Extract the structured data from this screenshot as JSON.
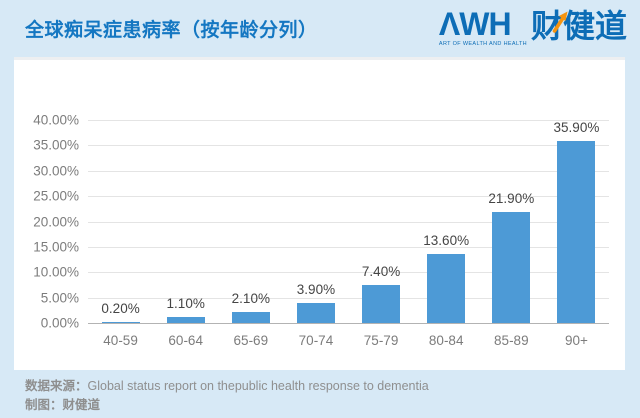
{
  "header": {
    "title": "全球痴呆症患病率（按年龄分列）",
    "logo": {
      "wordmark": "ΛWH",
      "tagline": "ART OF WEALTH AND HEALTH",
      "cn": "财健道",
      "arrow_icon": "up-right-arrow",
      "brand_blue": "#0d6db6",
      "brand_orange": "#f6940f"
    }
  },
  "chart_data": {
    "type": "bar",
    "title": "全球痴呆症患病率（按年龄分列）",
    "categories": [
      "40-59",
      "60-64",
      "65-69",
      "70-74",
      "75-79",
      "80-84",
      "85-89",
      "90+"
    ],
    "values": [
      0.2,
      1.1,
      2.1,
      3.9,
      7.4,
      13.6,
      21.9,
      35.9
    ],
    "value_labels": [
      "0.20%",
      "1.10%",
      "2.10%",
      "3.90%",
      "7.40%",
      "13.60%",
      "21.90%",
      "35.90%"
    ],
    "xlabel": "",
    "ylabel": "",
    "ylim": [
      0,
      40
    ],
    "y_ticks": [
      40,
      35,
      30,
      25,
      20,
      15,
      10,
      5,
      0
    ],
    "y_tick_labels": [
      "40.00%",
      "35.00%",
      "30.00%",
      "25.00%",
      "20.00%",
      "15.00%",
      "10.00%",
      "5.00%",
      "0.00%"
    ],
    "grid": true,
    "legend": null,
    "bar_color": "#4d9ad6",
    "gridline_color": "#e4e4e4",
    "axis_line_color": "#b3b3b3"
  },
  "footer": {
    "source_label": "数据来源：",
    "source_text": "Global status report on thepublic health response to dementia",
    "credit_label": "制图：",
    "credit_text": "财健道"
  }
}
